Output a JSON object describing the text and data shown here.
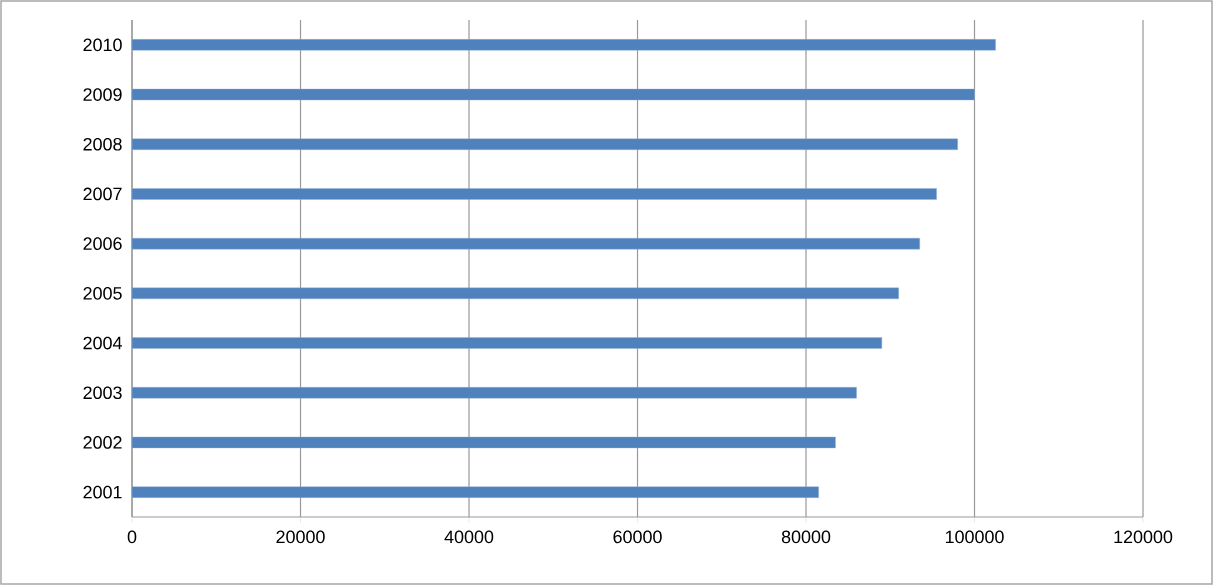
{
  "chart_data": {
    "type": "bar",
    "orientation": "horizontal",
    "categories": [
      "2010",
      "2009",
      "2008",
      "2007",
      "2006",
      "2005",
      "2004",
      "2003",
      "2002",
      "2001"
    ],
    "values": [
      102500,
      100000,
      98000,
      95500,
      93500,
      91000,
      89000,
      86000,
      83500,
      81500
    ],
    "color": "#4f81bd",
    "xlim": [
      0,
      120000
    ],
    "xticks": [
      0,
      20000,
      40000,
      60000,
      80000,
      100000,
      120000
    ],
    "grid": "x"
  }
}
